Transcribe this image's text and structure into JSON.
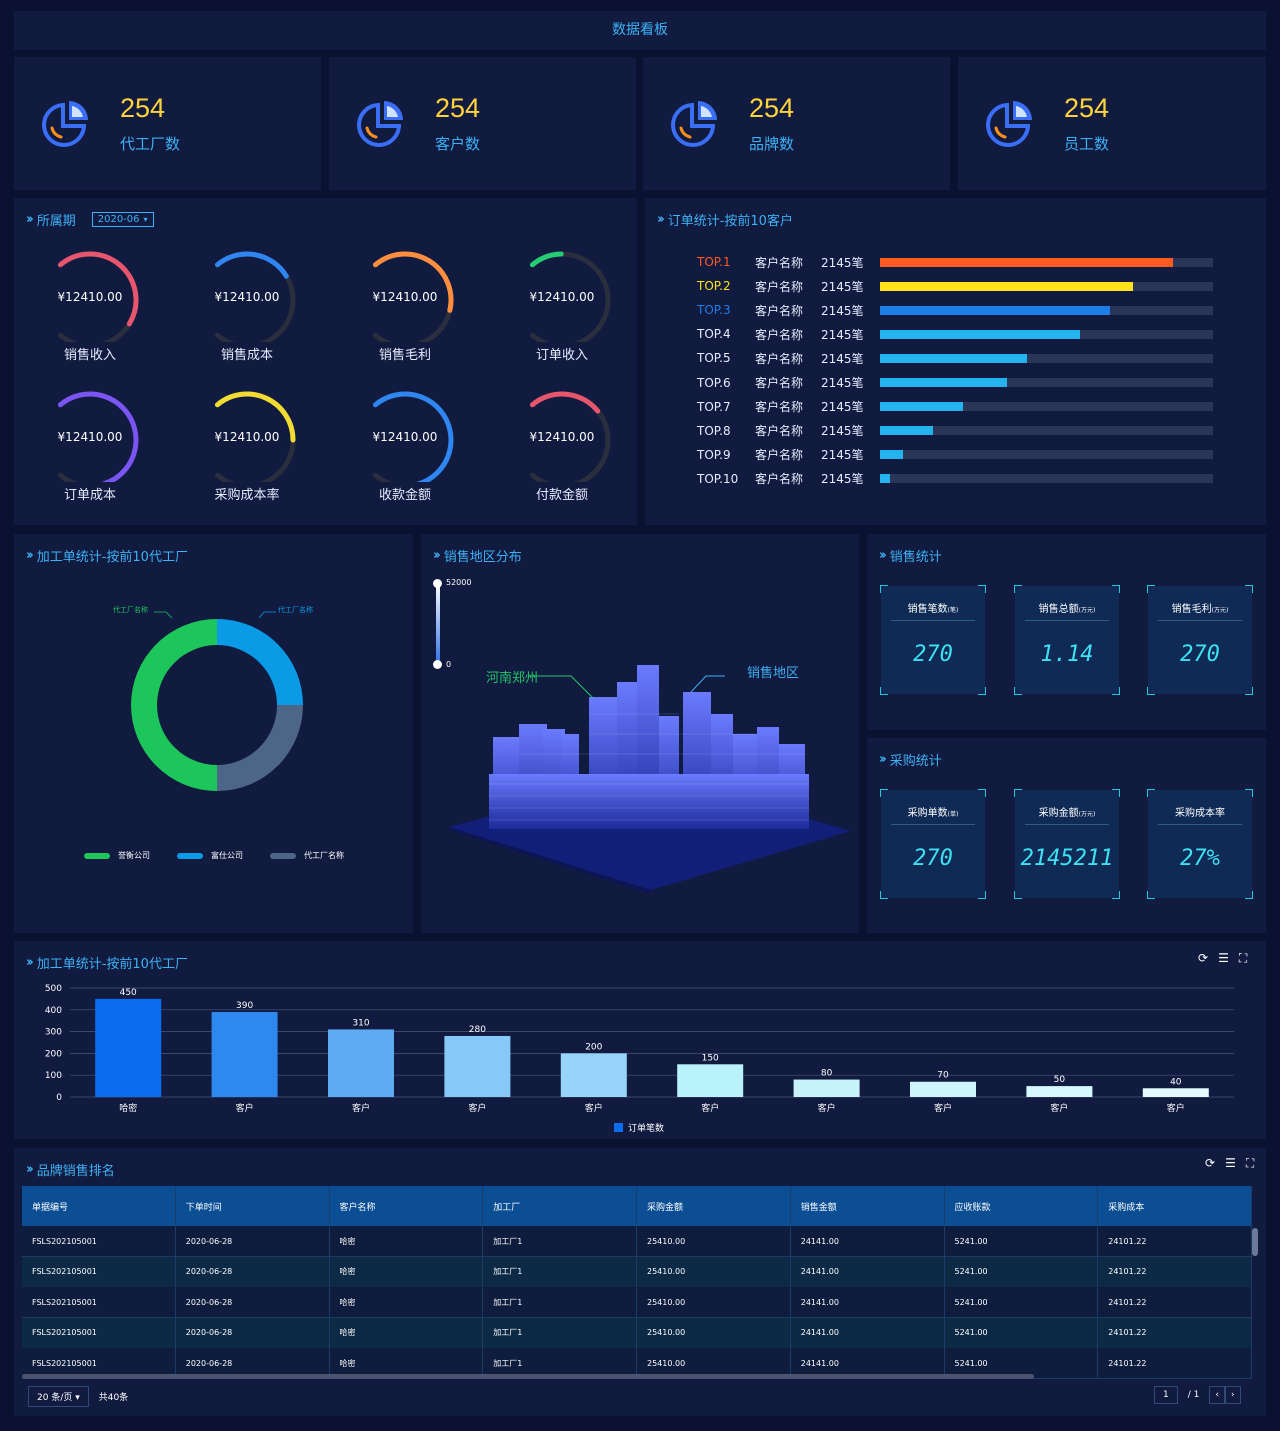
{
  "header": {
    "title": "数据看板"
  },
  "kpis": [
    {
      "value": "254",
      "label": "代工厂数"
    },
    {
      "value": "254",
      "label": "客户数"
    },
    {
      "value": "254",
      "label": "品牌数"
    },
    {
      "value": "254",
      "label": "员工数"
    }
  ],
  "period": {
    "title": "所属期",
    "select_value": "2020-06",
    "gauges": [
      {
        "value": "¥12410.00",
        "label": "销售收入",
        "color": "#e8566e",
        "percent": 0.62
      },
      {
        "value": "¥12410.00",
        "label": "销售成本",
        "color": "#2f86f0",
        "percent": 0.38
      },
      {
        "value": "¥12410.00",
        "label": "销售毛利",
        "color": "#ff8f3e",
        "percent": 0.55
      },
      {
        "value": "¥12410.00",
        "label": "订单收入",
        "color": "#25cc72",
        "percent": 0.15
      },
      {
        "value": "¥12410.00",
        "label": "订单成本",
        "color": "#7a55f2",
        "percent": 0.88
      },
      {
        "value": "¥12410.00",
        "label": "采购成本率",
        "color": "#f2dc33",
        "percent": 0.5
      },
      {
        "value": "¥12410.00",
        "label": "收款金额",
        "color": "#2f86f0",
        "percent": 0.9
      },
      {
        "value": "¥12410.00",
        "label": "付款金额",
        "color": "#e8566e",
        "percent": 0.35
      }
    ]
  },
  "orders": {
    "title": "订单统计-按前10客户",
    "rows": [
      {
        "rank": "TOP.1",
        "name": "客户名称",
        "count": "2145笔",
        "percent": 0.88,
        "color": "#ff5a1f",
        "rank_color": "#ff5a1f"
      },
      {
        "rank": "TOP.2",
        "name": "客户名称",
        "count": "2145笔",
        "percent": 0.76,
        "color": "#ffe21a",
        "rank_color": "#ffe21a"
      },
      {
        "rank": "TOP.3",
        "name": "客户名称",
        "count": "2145笔",
        "percent": 0.69,
        "color": "#1e7ee8",
        "rank_color": "#1e7ee8"
      },
      {
        "rank": "TOP.4",
        "name": "客户名称",
        "count": "2145笔",
        "percent": 0.6,
        "color": "#23b4f0",
        "rank_color": "#e6ecff"
      },
      {
        "rank": "TOP.5",
        "name": "客户名称",
        "count": "2145笔",
        "percent": 0.44,
        "color": "#23b4f0",
        "rank_color": "#e6ecff"
      },
      {
        "rank": "TOP.6",
        "name": "客户名称",
        "count": "2145笔",
        "percent": 0.38,
        "color": "#23b4f0",
        "rank_color": "#e6ecff"
      },
      {
        "rank": "TOP.7",
        "name": "客户名称",
        "count": "2145笔",
        "percent": 0.25,
        "color": "#23b4f0",
        "rank_color": "#e6ecff"
      },
      {
        "rank": "TOP.8",
        "name": "客户名称",
        "count": "2145笔",
        "percent": 0.16,
        "color": "#23b4f0",
        "rank_color": "#e6ecff"
      },
      {
        "rank": "TOP.9",
        "name": "客户名称",
        "count": "2145笔",
        "percent": 0.07,
        "color": "#23b4f0",
        "rank_color": "#e6ecff"
      },
      {
        "rank": "TOP.10",
        "name": "客户名称",
        "count": "2145笔",
        "percent": 0.03,
        "color": "#23b4f0",
        "rank_color": "#e6ecff"
      }
    ]
  },
  "donut": {
    "title": "加工单统计-按前10代工厂",
    "callout_left": "代工厂名称",
    "callout_right": "代工厂名称",
    "legend": [
      {
        "name": "誉衡公司",
        "color": "#1dc65a"
      },
      {
        "name": "富仕公司",
        "color": "#0a9ae6"
      },
      {
        "name": "代工厂名称",
        "color": "#4d6687"
      }
    ]
  },
  "map": {
    "title": "销售地区分布",
    "scale_max": "52000",
    "scale_min": "0",
    "label_city": "河南郑州",
    "label_region": "销售地区"
  },
  "sales": {
    "title": "销售统计",
    "cards": [
      {
        "label": "销售笔数",
        "unit": "(笔)",
        "value": "270"
      },
      {
        "label": "销售总额",
        "unit": "(万元)",
        "value": "1.14"
      },
      {
        "label": "销售毛利",
        "unit": "(万元)",
        "value": "270"
      }
    ]
  },
  "purchase": {
    "title": "采购统计",
    "cards": [
      {
        "label": "采购单数",
        "unit": "(单)",
        "value": "270"
      },
      {
        "label": "采购金额",
        "unit": "(万元)",
        "value": "2145211"
      },
      {
        "label": "采购成本率",
        "unit": "",
        "value": "27%"
      }
    ]
  },
  "bars": {
    "title": "加工单统计-按前10代工厂",
    "legend": "订单笔数"
  },
  "chart_data": {
    "type": "bar",
    "title": "加工单统计-按前10代工厂",
    "categories": [
      "哈密",
      "客户",
      "客户",
      "客户",
      "客户",
      "客户",
      "客户",
      "客户",
      "客户",
      "客户"
    ],
    "series": [
      {
        "name": "订单笔数",
        "values": [
          450,
          390,
          310,
          280,
          200,
          150,
          80,
          70,
          50,
          40
        ]
      }
    ],
    "ylim": [
      0,
      500
    ],
    "yticks": [
      "0",
      "100",
      "200",
      "300",
      "400",
      "500"
    ],
    "colors": [
      "#0a6cf0",
      "#2e89ef",
      "#5eaaf3",
      "#86c8f8",
      "#97d4f9",
      "#b9f2fb",
      "#c7f4fb",
      "#cdf6fb",
      "#d5f8fc",
      "#e3fbff"
    ]
  },
  "table": {
    "title": "品牌销售排名",
    "columns": [
      "单据编号",
      "下单时间",
      "客户名称",
      "加工厂",
      "采购金额",
      "销售金额",
      "应收账款",
      "采购成本"
    ],
    "rows": [
      [
        "FSLS202105001",
        "2020-06-28",
        "哈密",
        "加工厂1",
        "25410.00",
        "24141.00",
        "5241.00",
        "24101.22"
      ],
      [
        "FSLS202105001",
        "2020-06-28",
        "哈密",
        "加工厂1",
        "25410.00",
        "24141.00",
        "5241.00",
        "24101.22"
      ],
      [
        "FSLS202105001",
        "2020-06-28",
        "哈密",
        "加工厂1",
        "25410.00",
        "24141.00",
        "5241.00",
        "24101.22"
      ],
      [
        "FSLS202105001",
        "2020-06-28",
        "哈密",
        "加工厂1",
        "25410.00",
        "24141.00",
        "5241.00",
        "24101.22"
      ],
      [
        "FSLS202105001",
        "2020-06-28",
        "哈密",
        "加工厂1",
        "25410.00",
        "24141.00",
        "5241.00",
        "24101.22"
      ]
    ],
    "page_size": "20 条/页",
    "total": "共40条",
    "page": "1",
    "page_total": "/ 1"
  }
}
